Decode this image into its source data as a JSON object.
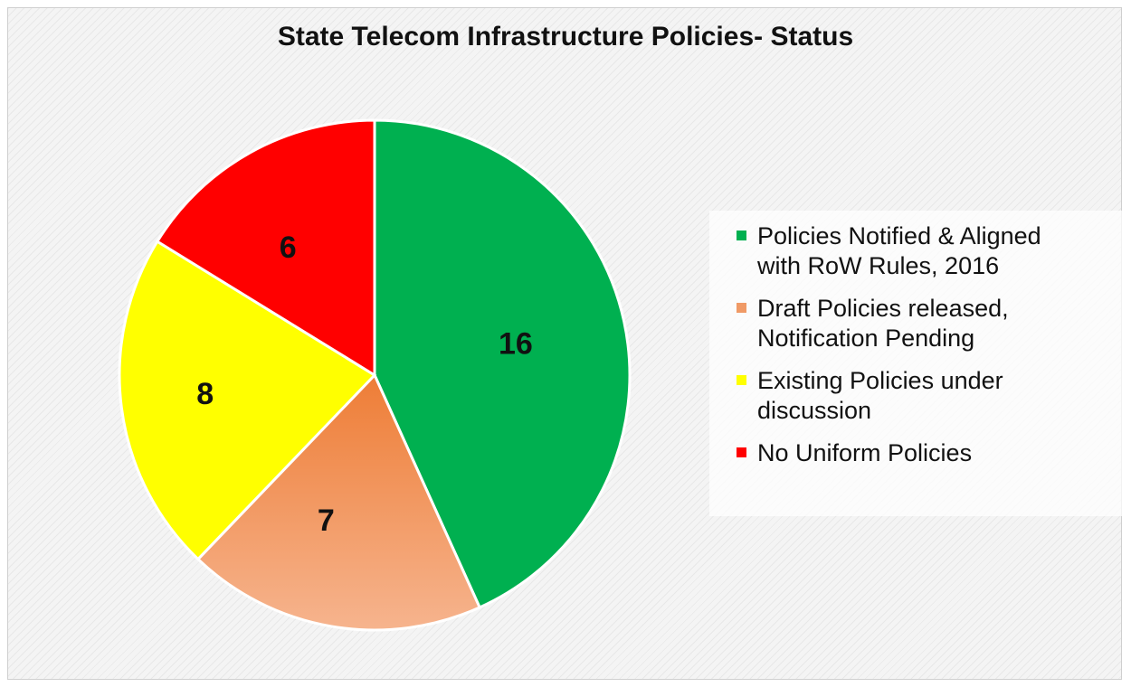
{
  "chart_data": {
    "type": "pie",
    "title": "State Telecom Infrastructure Policies- Status",
    "categories": [
      "Policies Notified & Aligned with RoW Rules, 2016",
      "Draft Policies released, Notification Pending",
      "Existing Policies under discussion",
      "No Uniform Policies"
    ],
    "values": [
      16,
      7,
      8,
      6
    ],
    "data_labels": [
      "16",
      "7",
      "8",
      "6"
    ],
    "colors": [
      "#00b050",
      "#f0a06c",
      "#ffff00",
      "#ff0000"
    ],
    "legend": {
      "position": "right",
      "lines": [
        [
          "Policies Notified & Aligned",
          "with RoW Rules, 2016"
        ],
        [
          "Draft Policies released,",
          "Notification Pending"
        ],
        [
          "Existing Policies under",
          "discussion"
        ],
        [
          "No Uniform Policies"
        ]
      ]
    }
  }
}
